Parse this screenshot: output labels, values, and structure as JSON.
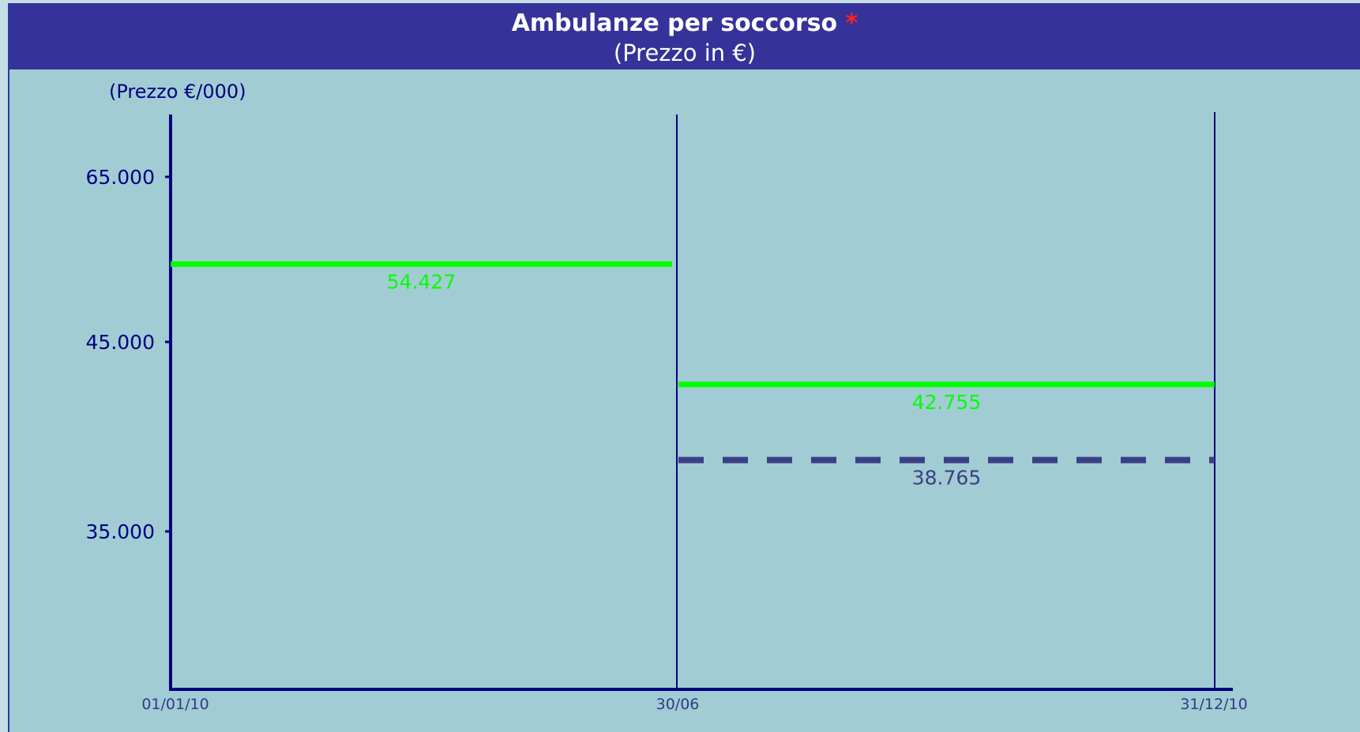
{
  "header": {
    "title": "Ambulanze per soccorso",
    "title_marker": "*",
    "subtitle": "(Prezzo in €)"
  },
  "colors": {
    "background": "#a2ccd3",
    "header": "#353399",
    "axis": "#000080",
    "series_green": "#00ff00",
    "series_dashed": "#3a3f86",
    "marker": "#ff2020"
  },
  "chart_data": {
    "type": "line",
    "ylabel": "(Prezzo €/000)",
    "yticks": [
      {
        "value": 35000,
        "label": "35.000"
      },
      {
        "value": 45000,
        "label": "45.000"
      },
      {
        "value": 65000,
        "label": "65.000"
      }
    ],
    "xticks": [
      "01/01/10",
      "30/06",
      "31/12/10"
    ],
    "series": [
      {
        "style": "solid",
        "color": "#00ff00",
        "segments": [
          {
            "from": "01/01/10",
            "to": "30/06",
            "value": 54427,
            "label": "54.427"
          },
          {
            "from": "30/06",
            "to": "31/12/10",
            "value": 42755,
            "label": "42.755"
          }
        ]
      },
      {
        "style": "dashed",
        "color": "#3a3f86",
        "segments": [
          {
            "from": "30/06",
            "to": "31/12/10",
            "value": 38765,
            "label": "38.765"
          }
        ]
      }
    ]
  }
}
